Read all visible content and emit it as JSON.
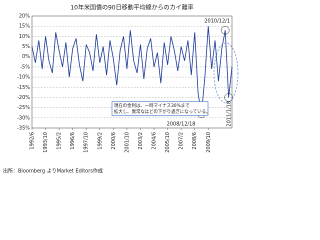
{
  "chart_data": {
    "type": "line",
    "title": "10年米国債の90日移動平均線からのカイ離率",
    "categories": [
      "1992/6",
      null,
      null,
      null,
      "1993/10",
      null,
      null,
      null,
      "1995/2",
      null,
      null,
      null,
      "1996/6",
      null,
      null,
      null,
      "1997/10",
      null,
      null,
      null,
      "1999/2",
      null,
      null,
      null,
      "2000/6",
      null,
      null,
      null,
      "2001/10",
      null,
      null,
      null,
      "2003/2",
      null,
      null,
      null,
      "2004/6",
      null,
      null,
      null,
      "2005/10",
      null,
      null,
      null,
      "2007/2",
      null,
      null,
      null,
      "2008/6",
      null,
      null,
      null,
      "2009/10",
      null,
      null,
      null,
      null,
      null,
      null,
      null
    ],
    "series": [
      {
        "name": "カイ離率",
        "color": "#1f3d99",
        "values": [
          5,
          -3,
          8,
          -6,
          10,
          -2,
          -8,
          12,
          3,
          -5,
          7,
          -10,
          4,
          9,
          -4,
          -12,
          6,
          2,
          -7,
          11,
          -3,
          5,
          -9,
          8,
          -1,
          -14,
          3,
          10,
          -6,
          13,
          -2,
          -8,
          6,
          -11,
          4,
          9,
          -5,
          2,
          -13,
          7,
          -4,
          10,
          3,
          -7,
          5,
          -2,
          8,
          -9,
          12,
          -18,
          -28,
          -10,
          15,
          -6,
          8,
          -12,
          4,
          13,
          -20,
          -5
        ]
      }
    ],
    "ylim": [
      -35,
      20
    ],
    "yticks": [
      {
        "value": 20,
        "label": "20%"
      },
      {
        "value": 15,
        "label": "15%"
      },
      {
        "value": 10,
        "label": "10%"
      },
      {
        "value": 5,
        "label": "5%"
      },
      {
        "value": 0,
        "label": "0%"
      },
      {
        "value": -5,
        "label": "-5%"
      },
      {
        "value": -10,
        "label": "-10%"
      },
      {
        "value": -15,
        "label": "-15%"
      },
      {
        "value": -20,
        "label": "-20%"
      },
      {
        "value": -25,
        "label": "-25%"
      },
      {
        "value": -30,
        "label": "-30%"
      },
      {
        "value": -35,
        "label": "-35%"
      }
    ],
    "grid": true,
    "annotations": [
      "2010/12/1",
      "2011/1/18",
      "2008/12/18",
      "現在の金利は、一時マイナス30%まで",
      "拡大し、異常なほどの下がり過ぎになっている。"
    ],
    "source": "出所：Bloomberg よりMarket Editors作成"
  }
}
